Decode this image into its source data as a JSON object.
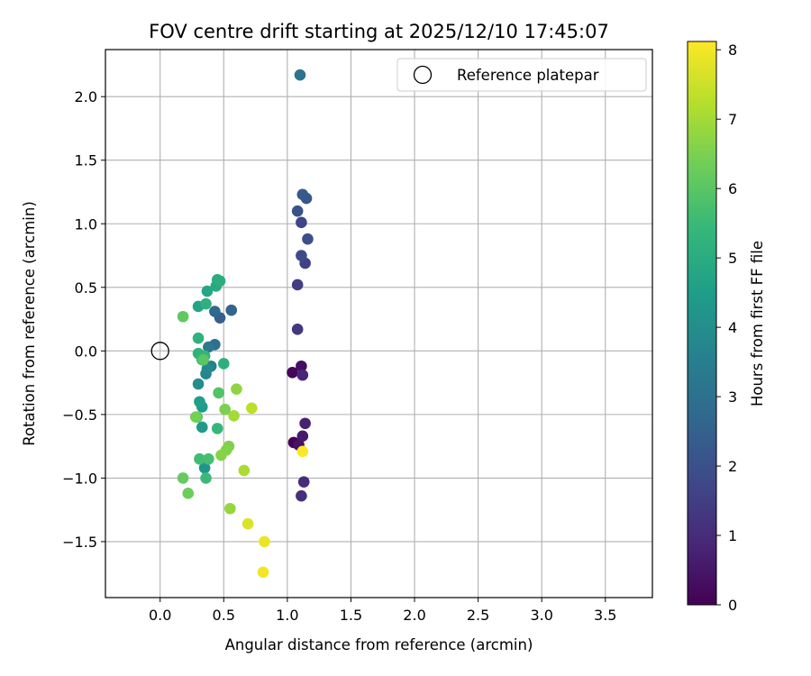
{
  "chart_data": {
    "type": "scatter",
    "title": "FOV centre drift starting at 2025/12/10 17:45:07",
    "xlabel": "Angular distance from reference (arcmin)",
    "ylabel": "Rotation from reference (arcmin)",
    "xlim": [
      -0.43,
      3.87
    ],
    "ylim": [
      -1.94,
      2.37
    ],
    "xticks": [
      0.0,
      0.5,
      1.0,
      1.5,
      2.0,
      2.5,
      3.0,
      3.5
    ],
    "xtick_labels": [
      "0.0",
      "0.5",
      "1.0",
      "1.5",
      "2.0",
      "2.5",
      "3.0",
      "3.5"
    ],
    "yticks": [
      -1.5,
      -1.0,
      -0.5,
      0.0,
      0.5,
      1.0,
      1.5,
      2.0
    ],
    "ytick_labels": [
      "−1.5",
      "−1.0",
      "−0.5",
      "0.0",
      "0.5",
      "1.0",
      "1.5",
      "2.0"
    ],
    "grid": true,
    "legend": {
      "position": "upper right",
      "entries": [
        "Reference platepar"
      ]
    },
    "reference_point": {
      "label": "Reference platepar",
      "x": 0.0,
      "y": 0.0
    },
    "colorbar": {
      "label": "Hours from first FF file",
      "min": 0,
      "max": 8.12,
      "ticks": [
        0,
        1,
        2,
        3,
        4,
        5,
        6,
        7,
        8
      ],
      "tick_labels": [
        "0",
        "1",
        "2",
        "3",
        "4",
        "5",
        "6",
        "7",
        "8"
      ],
      "colormap": "viridis"
    },
    "points": [
      {
        "x": 1.05,
        "y": -0.72,
        "hours": 0.05
      },
      {
        "x": 1.04,
        "y": -0.17,
        "hours": 0.15
      },
      {
        "x": 1.11,
        "y": -0.12,
        "hours": 0.3
      },
      {
        "x": 1.09,
        "y": -0.74,
        "hours": 0.4
      },
      {
        "x": 1.12,
        "y": -0.67,
        "hours": 0.6
      },
      {
        "x": 1.14,
        "y": -0.57,
        "hours": 0.75
      },
      {
        "x": 1.12,
        "y": -0.19,
        "hours": 0.85
      },
      {
        "x": 1.13,
        "y": -1.03,
        "hours": 1.0
      },
      {
        "x": 1.11,
        "y": -1.14,
        "hours": 1.1
      },
      {
        "x": 1.08,
        "y": 0.17,
        "hours": 1.3
      },
      {
        "x": 1.08,
        "y": 0.52,
        "hours": 1.45
      },
      {
        "x": 1.14,
        "y": 0.69,
        "hours": 1.6
      },
      {
        "x": 1.11,
        "y": 1.01,
        "hours": 1.7
      },
      {
        "x": 1.11,
        "y": 0.75,
        "hours": 1.85
      },
      {
        "x": 1.16,
        "y": 0.88,
        "hours": 1.95
      },
      {
        "x": 1.08,
        "y": 1.1,
        "hours": 2.05
      },
      {
        "x": 1.15,
        "y": 1.2,
        "hours": 2.2
      },
      {
        "x": 1.12,
        "y": 1.23,
        "hours": 2.3
      },
      {
        "x": 0.47,
        "y": 0.26,
        "hours": 2.45
      },
      {
        "x": 0.56,
        "y": 0.32,
        "hours": 2.6
      },
      {
        "x": 0.43,
        "y": 0.31,
        "hours": 2.75
      },
      {
        "x": 0.43,
        "y": 0.05,
        "hours": 2.9
      },
      {
        "x": 1.1,
        "y": 2.17,
        "hours": 3.1
      },
      {
        "x": 0.38,
        "y": 0.03,
        "hours": 3.3
      },
      {
        "x": 0.4,
        "y": -0.12,
        "hours": 3.5
      },
      {
        "x": 0.36,
        "y": -0.18,
        "hours": 3.7
      },
      {
        "x": 0.37,
        "y": -0.14,
        "hours": 3.85
      },
      {
        "x": 0.3,
        "y": -0.26,
        "hours": 4.0
      },
      {
        "x": 0.35,
        "y": -0.92,
        "hours": 4.2
      },
      {
        "x": 0.33,
        "y": -0.6,
        "hours": 4.35
      },
      {
        "x": 0.33,
        "y": -0.44,
        "hours": 4.45
      },
      {
        "x": 0.31,
        "y": -0.4,
        "hours": 4.55
      },
      {
        "x": 0.3,
        "y": 0.35,
        "hours": 4.7
      },
      {
        "x": 0.37,
        "y": 0.47,
        "hours": 4.8
      },
      {
        "x": 0.44,
        "y": 0.51,
        "hours": 4.9
      },
      {
        "x": 0.45,
        "y": 0.56,
        "hours": 5.0
      },
      {
        "x": 0.47,
        "y": 0.55,
        "hours": 5.05
      },
      {
        "x": 0.5,
        "y": -0.1,
        "hours": 5.1
      },
      {
        "x": 0.36,
        "y": 0.37,
        "hours": 5.15
      },
      {
        "x": 0.3,
        "y": 0.1,
        "hours": 5.2
      },
      {
        "x": 0.3,
        "y": -0.02,
        "hours": 5.25
      },
      {
        "x": 0.35,
        "y": -0.04,
        "hours": 5.3
      },
      {
        "x": 0.33,
        "y": -0.07,
        "hours": 5.35
      },
      {
        "x": 0.45,
        "y": -0.61,
        "hours": 5.4
      },
      {
        "x": 0.36,
        "y": -1.0,
        "hours": 5.5
      },
      {
        "x": 0.31,
        "y": -0.85,
        "hours": 5.6
      },
      {
        "x": 0.38,
        "y": -0.85,
        "hours": 5.7
      },
      {
        "x": 0.29,
        "y": -0.52,
        "hours": 5.8
      },
      {
        "x": 0.46,
        "y": -0.33,
        "hours": 5.9
      },
      {
        "x": 0.34,
        "y": -0.07,
        "hours": 6.0
      },
      {
        "x": 0.18,
        "y": 0.27,
        "hours": 6.1
      },
      {
        "x": 0.18,
        "y": -1.0,
        "hours": 6.2
      },
      {
        "x": 0.22,
        "y": -1.12,
        "hours": 6.3
      },
      {
        "x": 0.28,
        "y": -0.52,
        "hours": 6.4
      },
      {
        "x": 0.51,
        "y": -0.46,
        "hours": 6.5
      },
      {
        "x": 0.54,
        "y": -0.75,
        "hours": 6.55
      },
      {
        "x": 0.52,
        "y": -0.78,
        "hours": 6.6
      },
      {
        "x": 0.48,
        "y": -0.82,
        "hours": 6.65
      },
      {
        "x": 0.6,
        "y": -0.3,
        "hours": 6.75
      },
      {
        "x": 0.55,
        "y": -1.24,
        "hours": 6.85
      },
      {
        "x": 0.58,
        "y": -0.51,
        "hours": 7.0
      },
      {
        "x": 0.66,
        "y": -0.94,
        "hours": 7.1
      },
      {
        "x": 0.72,
        "y": -0.45,
        "hours": 7.3
      },
      {
        "x": 0.69,
        "y": -1.36,
        "hours": 7.7
      },
      {
        "x": 0.82,
        "y": -1.5,
        "hours": 7.9
      },
      {
        "x": 0.81,
        "y": -1.74,
        "hours": 8.0
      },
      {
        "x": 1.12,
        "y": -0.79,
        "hours": 8.1
      }
    ]
  }
}
